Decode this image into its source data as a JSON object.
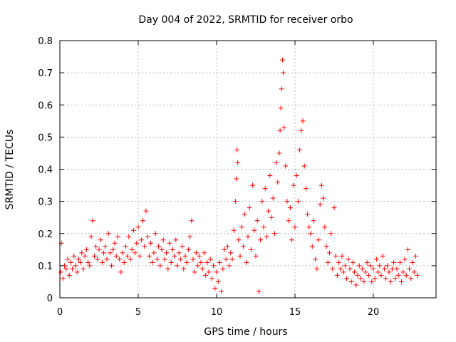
{
  "chart_data": {
    "type": "scatter",
    "title": "Day 004 of 2022, SRMTID for receiver orbo",
    "xlabel": "GPS time / hours",
    "ylabel": "SRMTID / TECUs",
    "xlim": [
      0,
      24
    ],
    "ylim": [
      0,
      0.8
    ],
    "xticks": [
      0,
      5,
      10,
      15,
      20
    ],
    "yticks": [
      0,
      0.1,
      0.2,
      0.3,
      0.4,
      0.5,
      0.6,
      0.7,
      0.8
    ],
    "xtick_labels": [
      "0",
      "5",
      "10",
      "15",
      "20"
    ],
    "ytick_labels": [
      "0",
      "0.1",
      "0.2",
      "0.3",
      "0.4",
      "0.5",
      "0.6",
      "0.7",
      "0.8"
    ],
    "grid": true,
    "marker": "plus",
    "color": "#ff0000",
    "series": [
      {
        "name": "SRMTID",
        "points": [
          [
            0.05,
            0.08
          ],
          [
            0.1,
            0.17
          ],
          [
            0.2,
            0.06
          ],
          [
            0.3,
            0.1
          ],
          [
            0.4,
            0.09
          ],
          [
            0.5,
            0.12
          ],
          [
            0.6,
            0.07
          ],
          [
            0.7,
            0.11
          ],
          [
            0.8,
            0.09
          ],
          [
            0.9,
            0.13
          ],
          [
            1.0,
            0.1
          ],
          [
            1.1,
            0.08
          ],
          [
            1.2,
            0.12
          ],
          [
            1.3,
            0.11
          ],
          [
            1.4,
            0.14
          ],
          [
            1.5,
            0.09
          ],
          [
            1.6,
            0.13
          ],
          [
            1.7,
            0.15
          ],
          [
            1.8,
            0.11
          ],
          [
            1.9,
            0.1
          ],
          [
            2.0,
            0.19
          ],
          [
            2.1,
            0.24
          ],
          [
            2.2,
            0.13
          ],
          [
            2.3,
            0.16
          ],
          [
            2.4,
            0.12
          ],
          [
            2.5,
            0.15
          ],
          [
            2.6,
            0.18
          ],
          [
            2.7,
            0.11
          ],
          [
            2.8,
            0.14
          ],
          [
            2.9,
            0.16
          ],
          [
            3.0,
            0.12
          ],
          [
            3.1,
            0.2
          ],
          [
            3.2,
            0.14
          ],
          [
            3.3,
            0.1
          ],
          [
            3.4,
            0.15
          ],
          [
            3.5,
            0.17
          ],
          [
            3.6,
            0.13
          ],
          [
            3.7,
            0.19
          ],
          [
            3.8,
            0.12
          ],
          [
            3.9,
            0.08
          ],
          [
            4.0,
            0.14
          ],
          [
            4.1,
            0.11
          ],
          [
            4.2,
            0.16
          ],
          [
            4.3,
            0.13
          ],
          [
            4.4,
            0.19
          ],
          [
            4.5,
            0.12
          ],
          [
            4.6,
            0.15
          ],
          [
            4.7,
            0.21
          ],
          [
            4.8,
            0.14
          ],
          [
            4.9,
            0.17
          ],
          [
            5.0,
            0.22
          ],
          [
            5.1,
            0.13
          ],
          [
            5.2,
            0.18
          ],
          [
            5.3,
            0.24
          ],
          [
            5.4,
            0.16
          ],
          [
            5.5,
            0.27
          ],
          [
            5.6,
            0.19
          ],
          [
            5.7,
            0.13
          ],
          [
            5.8,
            0.17
          ],
          [
            5.9,
            0.11
          ],
          [
            6.0,
            0.14
          ],
          [
            6.1,
            0.2
          ],
          [
            6.2,
            0.12
          ],
          [
            6.3,
            0.16
          ],
          [
            6.4,
            0.1
          ],
          [
            6.5,
            0.15
          ],
          [
            6.6,
            0.18
          ],
          [
            6.7,
            0.12
          ],
          [
            6.8,
            0.14
          ],
          [
            6.9,
            0.09
          ],
          [
            7.0,
            0.17
          ],
          [
            7.1,
            0.11
          ],
          [
            7.2,
            0.15
          ],
          [
            7.3,
            0.13
          ],
          [
            7.4,
            0.18
          ],
          [
            7.5,
            0.1
          ],
          [
            7.6,
            0.14
          ],
          [
            7.7,
            0.12
          ],
          [
            7.8,
            0.16
          ],
          [
            7.9,
            0.09
          ],
          [
            8.0,
            0.13
          ],
          [
            8.1,
            0.11
          ],
          [
            8.2,
            0.15
          ],
          [
            8.3,
            0.19
          ],
          [
            8.4,
            0.24
          ],
          [
            8.5,
            0.12
          ],
          [
            8.6,
            0.08
          ],
          [
            8.7,
            0.14
          ],
          [
            8.8,
            0.1
          ],
          [
            8.9,
            0.13
          ],
          [
            9.0,
            0.11
          ],
          [
            9.1,
            0.09
          ],
          [
            9.2,
            0.14
          ],
          [
            9.3,
            0.07
          ],
          [
            9.4,
            0.11
          ],
          [
            9.5,
            0.08
          ],
          [
            9.6,
            0.12
          ],
          [
            9.7,
            0.06
          ],
          [
            9.8,
            0.1
          ],
          [
            9.9,
            0.03
          ],
          [
            10.0,
            0.08
          ],
          [
            10.1,
            0.05
          ],
          [
            10.2,
            0.11
          ],
          [
            10.3,
            0.02
          ],
          [
            10.4,
            0.09
          ],
          [
            10.5,
            0.15
          ],
          [
            10.6,
            0.12
          ],
          [
            10.7,
            0.16
          ],
          [
            10.8,
            0.1
          ],
          [
            10.9,
            0.14
          ],
          [
            11.0,
            0.12
          ],
          [
            11.1,
            0.21
          ],
          [
            11.2,
            0.3
          ],
          [
            11.25,
            0.37
          ],
          [
            11.3,
            0.46
          ],
          [
            11.35,
            0.42
          ],
          [
            11.4,
            0.18
          ],
          [
            11.5,
            0.13
          ],
          [
            11.6,
            0.22
          ],
          [
            11.7,
            0.16
          ],
          [
            11.8,
            0.26
          ],
          [
            11.9,
            0.11
          ],
          [
            12.0,
            0.19
          ],
          [
            12.1,
            0.28
          ],
          [
            12.2,
            0.15
          ],
          [
            12.3,
            0.35
          ],
          [
            12.4,
            0.21
          ],
          [
            12.5,
            0.13
          ],
          [
            12.6,
            0.24
          ],
          [
            12.7,
            0.02
          ],
          [
            12.8,
            0.18
          ],
          [
            12.9,
            0.3
          ],
          [
            13.0,
            0.22
          ],
          [
            13.1,
            0.34
          ],
          [
            13.2,
            0.19
          ],
          [
            13.3,
            0.27
          ],
          [
            13.4,
            0.38
          ],
          [
            13.5,
            0.25
          ],
          [
            13.6,
            0.31
          ],
          [
            13.7,
            0.2
          ],
          [
            13.8,
            0.42
          ],
          [
            13.9,
            0.36
          ],
          [
            14.0,
            0.45
          ],
          [
            14.05,
            0.52
          ],
          [
            14.1,
            0.59
          ],
          [
            14.15,
            0.65
          ],
          [
            14.2,
            0.74
          ],
          [
            14.25,
            0.7
          ],
          [
            14.3,
            0.53
          ],
          [
            14.4,
            0.41
          ],
          [
            14.5,
            0.3
          ],
          [
            14.6,
            0.24
          ],
          [
            14.7,
            0.28
          ],
          [
            14.8,
            0.18
          ],
          [
            14.9,
            0.35
          ],
          [
            15.0,
            0.22
          ],
          [
            15.1,
            0.38
          ],
          [
            15.2,
            0.3
          ],
          [
            15.3,
            0.46
          ],
          [
            15.4,
            0.52
          ],
          [
            15.5,
            0.55
          ],
          [
            15.6,
            0.41
          ],
          [
            15.7,
            0.34
          ],
          [
            15.8,
            0.26
          ],
          [
            15.9,
            0.22
          ],
          [
            16.0,
            0.2
          ],
          [
            16.1,
            0.16
          ],
          [
            16.2,
            0.24
          ],
          [
            16.3,
            0.12
          ],
          [
            16.4,
            0.09
          ],
          [
            16.5,
            0.18
          ],
          [
            16.6,
            0.29
          ],
          [
            16.7,
            0.35
          ],
          [
            16.8,
            0.31
          ],
          [
            16.9,
            0.22
          ],
          [
            17.0,
            0.16
          ],
          [
            17.1,
            0.11
          ],
          [
            17.2,
            0.14
          ],
          [
            17.3,
            0.2
          ],
          [
            17.4,
            0.09
          ],
          [
            17.5,
            0.28
          ],
          [
            17.6,
            0.13
          ],
          [
            17.7,
            0.07
          ],
          [
            17.8,
            0.11
          ],
          [
            17.9,
            0.09
          ],
          [
            18.0,
            0.13
          ],
          [
            18.1,
            0.08
          ],
          [
            18.2,
            0.1
          ],
          [
            18.3,
            0.06
          ],
          [
            18.4,
            0.12
          ],
          [
            18.5,
            0.09
          ],
          [
            18.6,
            0.05
          ],
          [
            18.7,
            0.11
          ],
          [
            18.8,
            0.08
          ],
          [
            18.9,
            0.04
          ],
          [
            19.0,
            0.07
          ],
          [
            19.1,
            0.1
          ],
          [
            19.2,
            0.06
          ],
          [
            19.3,
            0.09
          ],
          [
            19.4,
            0.05
          ],
          [
            19.5,
            0.08
          ],
          [
            19.6,
            0.11
          ],
          [
            19.7,
            0.07
          ],
          [
            19.8,
            0.1
          ],
          [
            19.9,
            0.05
          ],
          [
            20.0,
            0.09
          ],
          [
            20.1,
            0.06
          ],
          [
            20.2,
            0.12
          ],
          [
            20.3,
            0.08
          ],
          [
            20.4,
            0.1
          ],
          [
            20.5,
            0.07
          ],
          [
            20.6,
            0.13
          ],
          [
            20.7,
            0.09
          ],
          [
            20.8,
            0.06
          ],
          [
            20.9,
            0.1
          ],
          [
            21.0,
            0.08
          ],
          [
            21.1,
            0.05
          ],
          [
            21.2,
            0.09
          ],
          [
            21.3,
            0.11
          ],
          [
            21.4,
            0.06
          ],
          [
            21.5,
            0.09
          ],
          [
            21.6,
            0.07
          ],
          [
            21.7,
            0.11
          ],
          [
            21.8,
            0.05
          ],
          [
            21.9,
            0.08
          ],
          [
            22.0,
            0.12
          ],
          [
            22.1,
            0.07
          ],
          [
            22.2,
            0.15
          ],
          [
            22.3,
            0.09
          ],
          [
            22.4,
            0.06
          ],
          [
            22.5,
            0.11
          ],
          [
            22.6,
            0.08
          ],
          [
            22.7,
            0.13
          ],
          [
            22.8,
            0.07
          ]
        ]
      }
    ]
  }
}
